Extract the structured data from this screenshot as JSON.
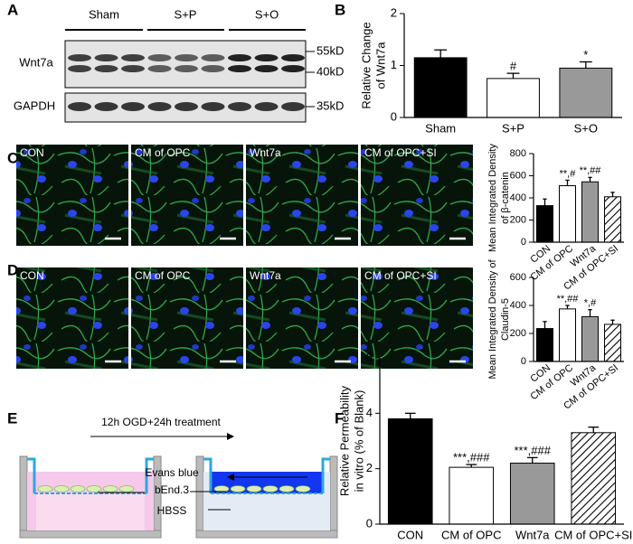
{
  "panel_labels": [
    "A",
    "B",
    "C",
    "D",
    "E",
    "F"
  ],
  "blot": {
    "groups": [
      "Sham",
      "S+P",
      "S+O"
    ],
    "rows": [
      "Wnt7a",
      "GAPDH"
    ],
    "markers": [
      "55kD",
      "40kD",
      "35kD"
    ]
  },
  "image_rows": [
    [
      "CON",
      "CM of OPC",
      "Wnt7a",
      "CM of OPC+SI"
    ],
    [
      "CON",
      "CM of OPC",
      "Wnt7a",
      "CM of OPC+SI"
    ]
  ],
  "diagram": {
    "step": "12h OGD+24h treatment",
    "labels": [
      "Evans blue",
      "bEnd.3",
      "HBSS"
    ]
  },
  "chart_data": [
    {
      "type": "bar",
      "y_label": [
        "Relative Change",
        "of Wnt7a"
      ],
      "categories": [
        "Sham",
        "S+P",
        "S+O"
      ],
      "values": [
        1.15,
        0.75,
        0.95
      ],
      "errors": [
        0.15,
        0.1,
        0.12
      ],
      "colors": [
        "#000000",
        "#ffffff",
        "#999999"
      ],
      "hatched": [
        false,
        false,
        false
      ],
      "annotations": [
        null,
        "#",
        "*"
      ],
      "ylim": [
        0,
        2
      ],
      "yticks": [
        0,
        1,
        2
      ],
      "rotated_labels": false
    },
    {
      "type": "bar",
      "y_label": [
        "Mean Integrated Density",
        "of β-catenin"
      ],
      "categories": [
        "CON",
        "CM of OPC",
        "Wnt7a",
        "CM of OPC+SI"
      ],
      "values": [
        330,
        510,
        545,
        410
      ],
      "errors": [
        60,
        50,
        40,
        40
      ],
      "colors": [
        "#000000",
        "#ffffff",
        "#999999",
        "#ffffff"
      ],
      "hatched": [
        false,
        false,
        false,
        true
      ],
      "annotations": [
        null,
        "**,#",
        "**,##",
        null
      ],
      "ylim": [
        0,
        800
      ],
      "yticks": [
        0,
        200,
        400,
        600,
        800
      ],
      "rotated_labels": true
    },
    {
      "type": "bar",
      "y_label": [
        "Mean Integrated Density of",
        "Claudin-5"
      ],
      "categories": [
        "CON",
        "CM of OPC",
        "Wnt7a",
        "CM of OPC+SI"
      ],
      "values": [
        235,
        375,
        320,
        265
      ],
      "errors": [
        50,
        25,
        50,
        30
      ],
      "colors": [
        "#000000",
        "#ffffff",
        "#999999",
        "#ffffff"
      ],
      "hatched": [
        false,
        false,
        false,
        true
      ],
      "annotations": [
        null,
        "**,##",
        "*,#",
        null
      ],
      "ylim": [
        0,
        600
      ],
      "yticks": [
        0,
        200,
        400,
        600
      ],
      "rotated_labels": true
    },
    {
      "type": "bar",
      "y_label": [
        "Relative Permeability",
        "in vitro (% of Blank)"
      ],
      "categories": [
        "CON",
        "CM of OPC",
        "Wnt7a",
        "CM of OPC+SI"
      ],
      "values": [
        3.8,
        2.05,
        2.2,
        3.3
      ],
      "errors": [
        0.2,
        0.1,
        0.2,
        0.2
      ],
      "colors": [
        "#000000",
        "#ffffff",
        "#999999",
        "#ffffff"
      ],
      "hatched": [
        false,
        false,
        false,
        true
      ],
      "annotations": [
        null,
        "***,###",
        "***,###",
        null
      ],
      "ylim": [
        0,
        6
      ],
      "yticks": [
        0,
        2,
        4,
        6
      ],
      "rotated_labels": false
    }
  ]
}
